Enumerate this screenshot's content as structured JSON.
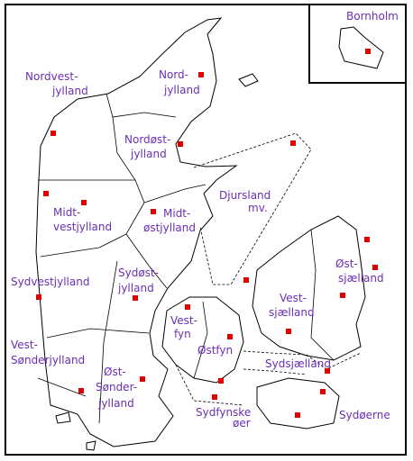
{
  "regions": [
    {
      "label": [
        "Bornholm"
      ]
    },
    {
      "label": [
        "Nordvest-",
        "jylland"
      ]
    },
    {
      "label": [
        "Nord-",
        "jylland"
      ]
    },
    {
      "label": [
        "Nordøst-",
        "jylland"
      ]
    },
    {
      "label": [
        "Djursland",
        "mv."
      ]
    },
    {
      "label": [
        "Midt-",
        "vestjylland"
      ]
    },
    {
      "label": [
        "Midt-",
        "østjylland"
      ]
    },
    {
      "label": [
        "Øst-",
        "sjælland"
      ]
    },
    {
      "label": [
        "Vest-",
        "sjælland"
      ]
    },
    {
      "label": [
        "Sydøst-",
        "jylland"
      ]
    },
    {
      "label": [
        "Sydvestjylland"
      ]
    },
    {
      "label": [
        "Vest-",
        "fyn"
      ]
    },
    {
      "label": [
        "Østfyn"
      ]
    },
    {
      "label": [
        "Vest-",
        "Sønderjylland"
      ]
    },
    {
      "label": [
        "Øst-",
        "Sønder-",
        "jylland"
      ]
    },
    {
      "label": [
        "Sydsjælland"
      ]
    },
    {
      "label": [
        "Sydfynske",
        "øer"
      ]
    },
    {
      "label": [
        "Sydøerne"
      ]
    }
  ]
}
